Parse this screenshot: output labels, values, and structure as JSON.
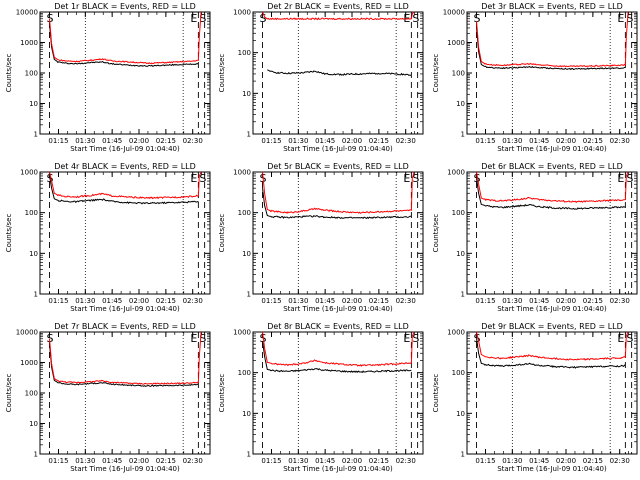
{
  "figure": {
    "title_template": "Det {det} BLACK = Events, RED = LLD",
    "xlabel": "Start Time (16-Jul-09 01:04:40)",
    "ylabel": "Counts/sec",
    "start_marker": "S",
    "end_marker": "E"
  },
  "colors": {
    "background": "#ffffff",
    "axes": "#000000",
    "events": "#000000",
    "lld": "#ff0000"
  },
  "chart_data": [
    {
      "type": "line",
      "det": "1r",
      "title": "Det 1r BLACK = Events, RED = LLD",
      "y_tick_labels": [
        "10000",
        "1000",
        "100",
        "10",
        "1"
      ],
      "ylim": [
        1,
        10000
      ],
      "yscale": "log",
      "x_tick_labels": [
        "01:15",
        "01:30",
        "01:45",
        "02:00",
        "02:15",
        "02:30"
      ],
      "xlabel": "Start Time (16-Jul-09 01:04:40)",
      "ylabel": "Counts/sec",
      "series": [
        {
          "name": "Events",
          "color": "#000000",
          "x": [
            5.3,
            6.5,
            8,
            10,
            14,
            20,
            28,
            35,
            40,
            50,
            60,
            70,
            80,
            85,
            88.5
          ],
          "y": [
            4000,
            700,
            280,
            230,
            210,
            200,
            220,
            230,
            200,
            180,
            170,
            180,
            190,
            195,
            200
          ]
        },
        {
          "name": "LLD",
          "color": "#ff0000",
          "x": [
            5.3,
            6.5,
            8,
            10,
            14,
            20,
            28,
            35,
            40,
            50,
            60,
            70,
            80,
            85,
            88.5,
            89,
            90
          ],
          "y": [
            6000,
            900,
            330,
            270,
            250,
            240,
            260,
            290,
            250,
            230,
            210,
            220,
            235,
            245,
            260,
            1500,
            10000
          ]
        }
      ]
    },
    {
      "type": "line",
      "det": "2r",
      "title": "Det 2r BLACK = Events, RED = LLD",
      "y_tick_labels": [
        "1000",
        "100",
        "10",
        "1"
      ],
      "ylim": [
        1,
        1000
      ],
      "yscale": "log",
      "x_tick_labels": [
        "01:15",
        "01:30",
        "01:45",
        "02:00",
        "02:15",
        "02:30"
      ],
      "xlabel": "Start Time (16-Jul-09 01:04:40)",
      "ylabel": "Counts/sec",
      "series": [
        {
          "name": "Events",
          "color": "#000000",
          "x": [
            8,
            10,
            14,
            20,
            28,
            35,
            40,
            50,
            60,
            70,
            80,
            85,
            88.5
          ],
          "y": [
            38,
            34,
            32,
            31,
            32,
            35,
            30,
            29,
            30,
            31,
            30,
            29,
            28
          ]
        },
        {
          "name": "LLD",
          "color": "#ff0000",
          "x": [
            5.3,
            6.5,
            8,
            20,
            40,
            60,
            80,
            88.5,
            89,
            90
          ],
          "y": [
            1000,
            750,
            680,
            680,
            680,
            680,
            680,
            680,
            900,
            1000
          ]
        }
      ]
    },
    {
      "type": "line",
      "det": "3r",
      "title": "Det 3r BLACK = Events, RED = LLD",
      "y_tick_labels": [
        "10000",
        "1000",
        "100",
        "10",
        "1"
      ],
      "ylim": [
        1,
        10000
      ],
      "yscale": "log",
      "x_tick_labels": [
        "01:15",
        "01:30",
        "01:45",
        "02:00",
        "02:15",
        "02:30"
      ],
      "xlabel": "Start Time (16-Jul-09 01:04:40)",
      "ylabel": "Counts/sec",
      "series": [
        {
          "name": "Events",
          "color": "#000000",
          "x": [
            5.3,
            6.5,
            8,
            10,
            14,
            20,
            28,
            35,
            40,
            50,
            60,
            70,
            80,
            85,
            88.5
          ],
          "y": [
            3000,
            500,
            190,
            160,
            150,
            145,
            150,
            160,
            150,
            140,
            135,
            140,
            145,
            145,
            150
          ]
        },
        {
          "name": "LLD",
          "color": "#ff0000",
          "x": [
            5.3,
            6.5,
            8,
            10,
            14,
            20,
            28,
            35,
            40,
            50,
            60,
            70,
            80,
            85,
            88.5,
            89,
            90
          ],
          "y": [
            5000,
            700,
            240,
            200,
            185,
            180,
            190,
            200,
            185,
            170,
            165,
            170,
            175,
            180,
            185,
            1500,
            10000
          ]
        }
      ]
    },
    {
      "type": "line",
      "det": "4r",
      "title": "Det 4r BLACK = Events, RED = LLD",
      "y_tick_labels": [
        "1000",
        "100",
        "10",
        "1"
      ],
      "ylim": [
        1,
        1000
      ],
      "yscale": "log",
      "x_tick_labels": [
        "01:15",
        "01:30",
        "01:45",
        "02:00",
        "02:15",
        "02:30"
      ],
      "xlabel": "Start Time (16-Jul-09 01:04:40)",
      "ylabel": "Counts/sec",
      "series": [
        {
          "name": "Events",
          "color": "#000000",
          "x": [
            5.3,
            6.5,
            8,
            10,
            14,
            20,
            28,
            35,
            40,
            50,
            60,
            70,
            80,
            85,
            88.5
          ],
          "y": [
            800,
            400,
            220,
            200,
            190,
            185,
            200,
            210,
            190,
            175,
            170,
            175,
            180,
            185,
            190
          ]
        },
        {
          "name": "LLD",
          "color": "#ff0000",
          "x": [
            5.3,
            6.5,
            8,
            10,
            14,
            20,
            28,
            35,
            40,
            50,
            60,
            70,
            80,
            85,
            88.5,
            89,
            90
          ],
          "y": [
            1000,
            600,
            300,
            270,
            250,
            245,
            265,
            290,
            260,
            240,
            230,
            235,
            245,
            250,
            260,
            800,
            1000
          ]
        }
      ]
    },
    {
      "type": "line",
      "det": "5r",
      "title": "Det 5r BLACK = Events, RED = LLD",
      "y_tick_labels": [
        "1000",
        "100",
        "10",
        "1"
      ],
      "ylim": [
        1,
        1000
      ],
      "yscale": "log",
      "x_tick_labels": [
        "01:15",
        "01:30",
        "01:45",
        "02:00",
        "02:15",
        "02:30"
      ],
      "xlabel": "Start Time (16-Jul-09 01:04:40)",
      "ylabel": "Counts/sec",
      "series": [
        {
          "name": "Events",
          "color": "#000000",
          "x": [
            5.3,
            6.5,
            8,
            10,
            14,
            20,
            28,
            35,
            40,
            50,
            60,
            70,
            80,
            85,
            88.5
          ],
          "y": [
            400,
            150,
            85,
            80,
            78,
            76,
            80,
            82,
            78,
            75,
            74,
            76,
            78,
            78,
            80
          ]
        },
        {
          "name": "LLD",
          "color": "#ff0000",
          "x": [
            5.3,
            6.5,
            8,
            10,
            14,
            20,
            28,
            35,
            40,
            50,
            60,
            70,
            80,
            85,
            88.5,
            89,
            90
          ],
          "y": [
            1000,
            300,
            120,
            110,
            105,
            100,
            110,
            125,
            115,
            105,
            100,
            105,
            110,
            110,
            115,
            700,
            1000
          ]
        }
      ]
    },
    {
      "type": "line",
      "det": "6r",
      "title": "Det 6r BLACK = Events, RED = LLD",
      "y_tick_labels": [
        "1000",
        "100",
        "10",
        "1"
      ],
      "ylim": [
        1,
        1000
      ],
      "yscale": "log",
      "x_tick_labels": [
        "01:15",
        "01:30",
        "01:45",
        "02:00",
        "02:15",
        "02:30"
      ],
      "xlabel": "Start Time (16-Jul-09 01:04:40)",
      "ylabel": "Counts/sec",
      "series": [
        {
          "name": "Events",
          "color": "#000000",
          "x": [
            5.3,
            6.5,
            8,
            10,
            14,
            20,
            28,
            35,
            40,
            50,
            60,
            70,
            80,
            85,
            88.5
          ],
          "y": [
            700,
            300,
            160,
            150,
            140,
            135,
            145,
            155,
            140,
            130,
            125,
            130,
            135,
            135,
            140
          ]
        },
        {
          "name": "LLD",
          "color": "#ff0000",
          "x": [
            5.3,
            6.5,
            8,
            10,
            14,
            20,
            28,
            35,
            40,
            50,
            60,
            70,
            80,
            85,
            88.5,
            89,
            90
          ],
          "y": [
            1000,
            500,
            230,
            210,
            200,
            195,
            210,
            230,
            210,
            195,
            185,
            190,
            200,
            200,
            210,
            800,
            1000
          ]
        }
      ]
    },
    {
      "type": "line",
      "det": "7r",
      "title": "Det 7r BLACK = Events, RED = LLD",
      "y_tick_labels": [
        "10000",
        "1000",
        "100",
        "10",
        "1"
      ],
      "ylim": [
        1,
        10000
      ],
      "yscale": "log",
      "x_tick_labels": [
        "01:15",
        "01:30",
        "01:45",
        "02:00",
        "02:15",
        "02:30"
      ],
      "xlabel": "Start Time (16-Jul-09 01:04:40)",
      "ylabel": "Counts/sec",
      "series": [
        {
          "name": "Events",
          "color": "#000000",
          "x": [
            5.3,
            6.5,
            8,
            10,
            14,
            20,
            28,
            35,
            40,
            50,
            60,
            70,
            80,
            85,
            88.5
          ],
          "y": [
            4000,
            700,
            260,
            220,
            200,
            190,
            205,
            215,
            195,
            180,
            170,
            175,
            180,
            185,
            190
          ]
        },
        {
          "name": "LLD",
          "color": "#ff0000",
          "x": [
            5.3,
            6.5,
            8,
            10,
            14,
            20,
            28,
            35,
            40,
            50,
            60,
            70,
            80,
            85,
            88.5,
            89,
            90
          ],
          "y": [
            6000,
            900,
            300,
            250,
            230,
            220,
            235,
            250,
            225,
            210,
            200,
            205,
            210,
            215,
            220,
            1500,
            10000
          ]
        }
      ]
    },
    {
      "type": "line",
      "det": "8r",
      "title": "Det 8r BLACK = Events, RED = LLD",
      "y_tick_labels": [
        "1000",
        "100",
        "10",
        "1"
      ],
      "ylim": [
        1,
        1000
      ],
      "yscale": "log",
      "x_tick_labels": [
        "01:15",
        "01:30",
        "01:45",
        "02:00",
        "02:15",
        "02:30"
      ],
      "xlabel": "Start Time (16-Jul-09 01:04:40)",
      "ylabel": "Counts/sec",
      "series": [
        {
          "name": "Events",
          "color": "#000000",
          "x": [
            5.3,
            6.5,
            8,
            10,
            14,
            20,
            28,
            35,
            40,
            50,
            60,
            70,
            80,
            85,
            88.5
          ],
          "y": [
            600,
            250,
            120,
            115,
            110,
            108,
            115,
            125,
            115,
            108,
            105,
            108,
            112,
            112,
            115
          ]
        },
        {
          "name": "LLD",
          "color": "#ff0000",
          "x": [
            5.3,
            6.5,
            8,
            10,
            14,
            20,
            28,
            35,
            40,
            50,
            60,
            70,
            80,
            85,
            88.5,
            89,
            90
          ],
          "y": [
            1000,
            400,
            180,
            170,
            160,
            155,
            170,
            200,
            175,
            160,
            150,
            155,
            165,
            170,
            175,
            800,
            1000
          ]
        }
      ]
    },
    {
      "type": "line",
      "det": "9r",
      "title": "Det 9r BLACK = Events, RED = LLD",
      "y_tick_labels": [
        "1000",
        "100",
        "10",
        "1"
      ],
      "ylim": [
        1,
        1000
      ],
      "yscale": "log",
      "x_tick_labels": [
        "01:15",
        "01:30",
        "01:45",
        "02:00",
        "02:15",
        "02:30"
      ],
      "xlabel": "Start Time (16-Jul-09 01:04:40)",
      "ylabel": "Counts/sec",
      "series": [
        {
          "name": "Events",
          "color": "#000000",
          "x": [
            5.3,
            6.5,
            8,
            10,
            14,
            20,
            28,
            35,
            40,
            50,
            60,
            70,
            80,
            85,
            88.5
          ],
          "y": [
            700,
            300,
            170,
            160,
            150,
            145,
            155,
            165,
            150,
            140,
            135,
            140,
            145,
            145,
            150
          ]
        },
        {
          "name": "LLD",
          "color": "#ff0000",
          "x": [
            5.3,
            6.5,
            8,
            10,
            14,
            20,
            28,
            35,
            40,
            50,
            60,
            70,
            80,
            85,
            88.5,
            89,
            90
          ],
          "y": [
            1000,
            600,
            280,
            250,
            235,
            225,
            245,
            265,
            240,
            220,
            210,
            215,
            225,
            230,
            240,
            800,
            1000
          ]
        }
      ]
    }
  ]
}
